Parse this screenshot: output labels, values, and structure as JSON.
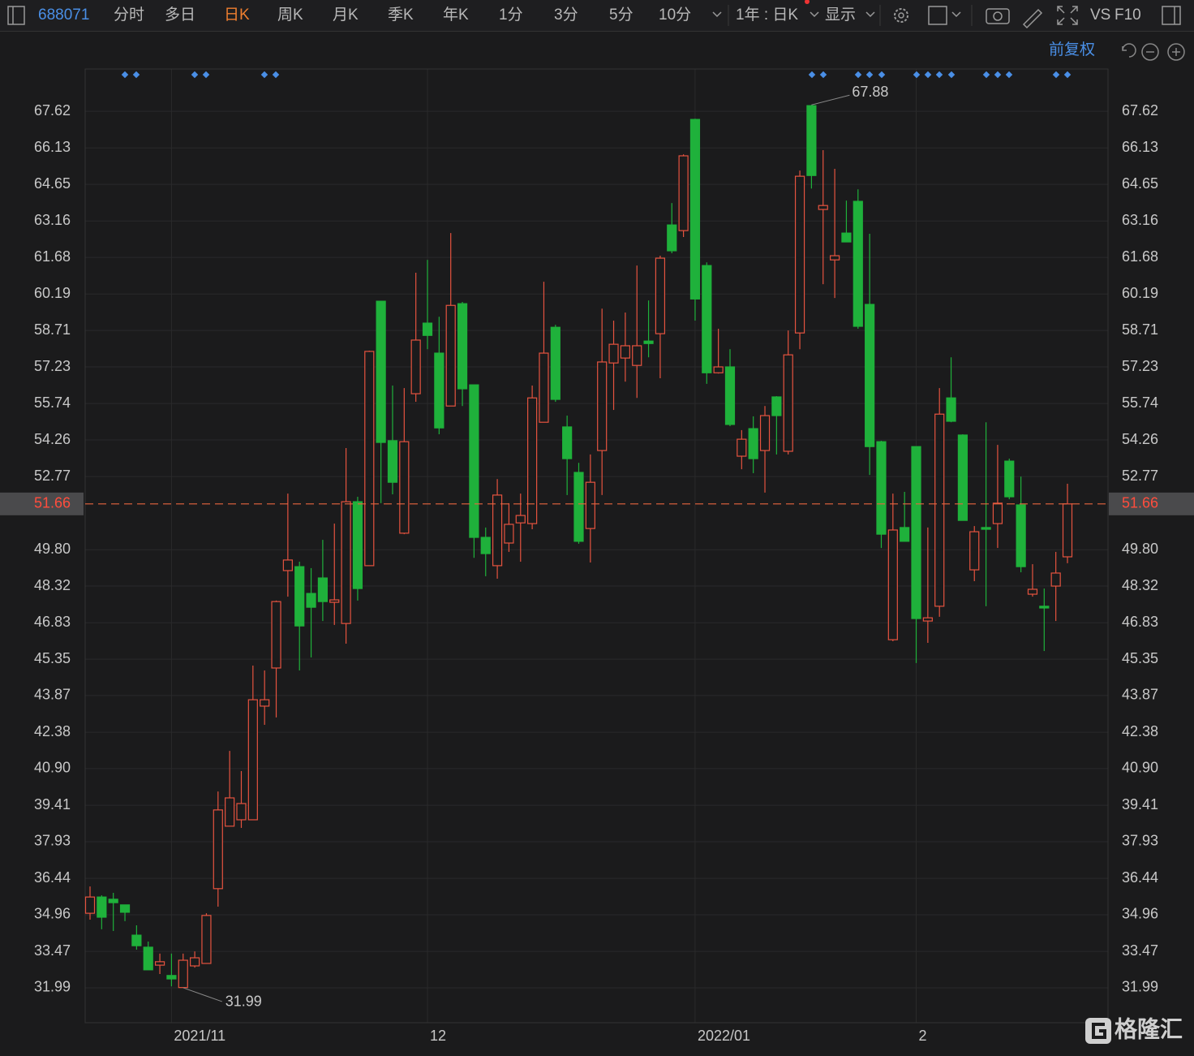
{
  "toolbar": {
    "code": "688071",
    "periods": [
      "分时",
      "多日",
      "日K",
      "周K",
      "月K",
      "季K",
      "年K",
      "1分",
      "3分",
      "5分",
      "10分"
    ],
    "active_period": 2,
    "range": "1年 : 日K",
    "display": "显示",
    "vs": "VS",
    "f10": "F10"
  },
  "adjust": "前复权",
  "watermark": "格隆汇",
  "chart_data": {
    "type": "candlestick",
    "categories": [
      null,
      null,
      null,
      null,
      null,
      null,
      null,
      "2021/11",
      null,
      null,
      null,
      null,
      null,
      null,
      null,
      null,
      null,
      null,
      null,
      null,
      null,
      null,
      null,
      null,
      null,
      null,
      null,
      null,
      null,
      "12",
      null,
      null,
      null,
      null,
      null,
      null,
      null,
      null,
      null,
      null,
      null,
      null,
      null,
      null,
      null,
      null,
      null,
      null,
      null,
      null,
      null,
      null,
      "2022/01",
      null,
      null,
      null,
      null,
      null,
      null,
      null,
      null,
      null,
      null,
      null,
      null,
      null,
      null,
      null,
      null,
      null,
      null,
      "2",
      null,
      null,
      null,
      null,
      null,
      null,
      null,
      null,
      null,
      null,
      null,
      null,
      null
    ],
    "open": [
      35.02,
      35.68,
      35.59,
      35.36,
      34.13,
      33.64,
      32.91,
      32.49,
      32.0,
      32.88,
      32.98,
      36.02,
      38.56,
      38.82,
      38.82,
      43.44,
      44.99,
      48.95,
      49.11,
      48.02,
      48.65,
      47.66,
      46.8,
      51.75,
      49.15,
      59.9,
      54.23,
      50.47,
      56.14,
      59.01,
      57.79,
      55.64,
      59.8,
      56.5,
      50.3,
      49.15,
      50.07,
      50.89,
      50.86,
      54.98,
      58.84,
      54.79,
      52.94,
      50.66,
      53.83,
      57.39,
      57.59,
      57.29,
      58.28,
      58.58,
      63.0,
      62.77,
      67.29,
      61.35,
      56.99,
      57.23,
      53.6,
      54.72,
      53.83,
      56.01,
      53.8,
      58.61,
      67.85,
      63.63,
      61.58,
      62.67,
      63.96,
      59.77,
      54.19,
      46.14,
      50.7,
      53.99,
      46.9,
      47.5,
      55.97,
      54.46,
      48.98,
      50.7,
      50.86,
      53.4,
      51.62,
      47.99,
      47.5,
      48.32,
      49.51
    ],
    "high": [
      36.11,
      35.75,
      35.85,
      35.36,
      34.53,
      33.87,
      33.38,
      33.38,
      33.38,
      33.47,
      35.02,
      39.97,
      41.62,
      40.8,
      45.09,
      44.89,
      47.73,
      52.08,
      49.31,
      49.05,
      50.2,
      50.86,
      53.93,
      51.95,
      57.89,
      59.9,
      56.47,
      56.37,
      61.06,
      61.58,
      59.27,
      62.67,
      59.87,
      56.5,
      50.7,
      52.67,
      51.69,
      52.08,
      56.47,
      60.69,
      58.94,
      55.25,
      53.33,
      53.67,
      59.6,
      59.11,
      59.44,
      61.35,
      59.93,
      61.75,
      63.89,
      65.87,
      67.32,
      61.48,
      58.78,
      57.95,
      54.66,
      55.22,
      55.64,
      56.04,
      58.71,
      65.21,
      67.88,
      66.04,
      65.28,
      63.99,
      64.45,
      62.64,
      54.23,
      52.08,
      52.15,
      53.99,
      50.7,
      56.37,
      57.62,
      54.49,
      50.76,
      54.98,
      54.06,
      53.5,
      52.77,
      49.21,
      48.22,
      49.71,
      52.48
    ],
    "low": [
      34.76,
      34.37,
      34.3,
      34.7,
      33.54,
      32.72,
      32.55,
      32.05,
      31.99,
      32.81,
      32.98,
      35.29,
      38.56,
      38.49,
      38.82,
      42.68,
      42.98,
      47.89,
      44.89,
      45.42,
      46.9,
      46.74,
      45.98,
      47.73,
      49.15,
      51.69,
      52.05,
      50.43,
      55.81,
      57.95,
      54.49,
      55.64,
      55.64,
      49.47,
      48.72,
      48.62,
      49.71,
      49.31,
      50.63,
      54.98,
      55.81,
      52.02,
      50.04,
      49.28,
      52.02,
      55.48,
      56.63,
      55.97,
      57.62,
      56.77,
      61.85,
      62.51,
      59.11,
      56.54,
      56.96,
      54.82,
      53.07,
      52.91,
      52.12,
      53.67,
      53.67,
      57.95,
      64.48,
      60.59,
      60.03,
      62.31,
      58.78,
      52.84,
      49.87,
      46.08,
      50.14,
      45.19,
      46.01,
      47.07,
      54.98,
      50.99,
      48.52,
      47.5,
      49.87,
      51.85,
      48.88,
      47.89,
      45.68,
      46.9,
      49.25
    ],
    "close": [
      35.68,
      34.86,
      35.45,
      35.06,
      33.7,
      32.72,
      33.05,
      32.35,
      33.11,
      33.21,
      34.93,
      39.22,
      39.71,
      39.48,
      43.7,
      43.7,
      47.69,
      49.38,
      46.7,
      47.46,
      47.69,
      47.76,
      51.75,
      48.22,
      57.86,
      54.16,
      52.54,
      54.19,
      58.32,
      58.51,
      54.75,
      59.73,
      56.34,
      50.3,
      49.64,
      52.02,
      50.83,
      51.19,
      55.97,
      57.79,
      55.91,
      53.5,
      50.14,
      52.54,
      57.43,
      58.15,
      58.09,
      58.09,
      58.18,
      61.65,
      61.95,
      65.81,
      59.99,
      56.99,
      57.23,
      54.89,
      54.29,
      53.5,
      55.25,
      55.25,
      57.72,
      64.98,
      65.01,
      63.79,
      61.75,
      62.31,
      58.88,
      53.99,
      50.43,
      50.6,
      50.14,
      47.0,
      47.03,
      55.31,
      55.02,
      50.99,
      50.53,
      50.63,
      51.69,
      51.95,
      49.11,
      48.19,
      47.43,
      48.85,
      51.66
    ],
    "up_color": "#e5533f",
    "down_color": "#1fb13b",
    "last_color": "#e8663f",
    "ylim": [
      30.57,
      69.34
    ],
    "yticks": [
      31.99,
      33.47,
      34.96,
      36.44,
      37.93,
      39.41,
      {
        "value": 40.9,
        "label": "40.90"
      },
      42.38,
      43.87,
      45.35,
      46.83,
      48.32,
      {
        "value": 49.8,
        "label": "49.80"
      },
      52.77,
      54.26,
      55.74,
      57.23,
      58.71,
      60.19,
      61.68,
      63.16,
      64.65,
      66.13,
      67.62
    ],
    "grid": true
  }
}
